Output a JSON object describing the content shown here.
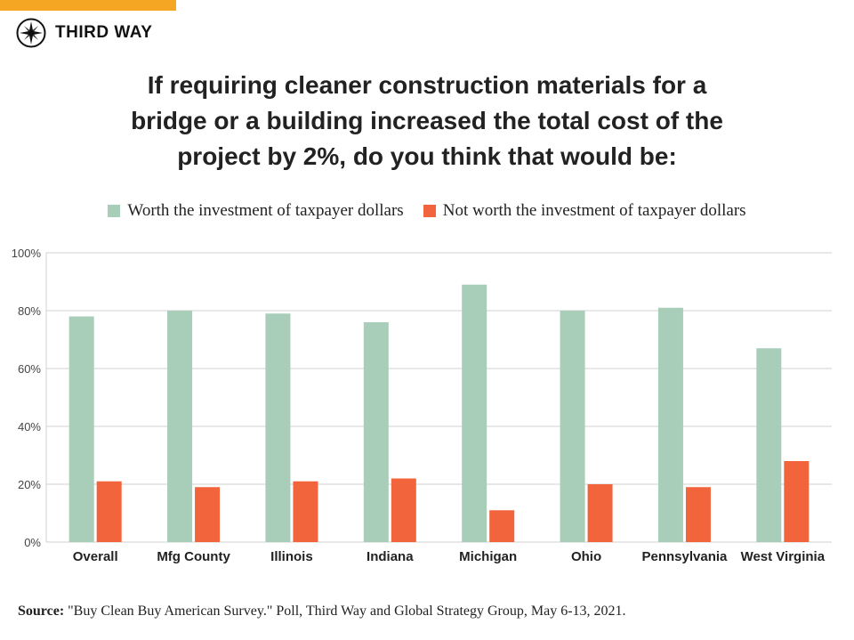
{
  "brand": {
    "name": "THIRD WAY",
    "accent_color": "#f5a623"
  },
  "title_lines": [
    "If requiring cleaner construction materials for a",
    "bridge or a building increased the total cost of the",
    "project by 2%, do you think that would be:"
  ],
  "source": {
    "label": "Source:",
    "text": "\"Buy Clean Buy American Survey.\" Poll, Third Way and Global Strategy Group, May 6-13, 2021."
  },
  "chart_data": {
    "type": "bar",
    "title": "If requiring cleaner construction materials for a bridge or a building increased the total cost of the project by 2%, do you think that would be:",
    "categories": [
      "Overall",
      "Mfg County",
      "Illinois",
      "Indiana",
      "Michigan",
      "Ohio",
      "Pennsylvania",
      "West Virginia"
    ],
    "series": [
      {
        "name": "Worth the investment of taxpayer dollars",
        "color": "#a8cdb9",
        "values": [
          78,
          80,
          79,
          76,
          89,
          80,
          81,
          67
        ]
      },
      {
        "name": "Not worth the investment of taxpayer dollars",
        "color": "#f2653c",
        "values": [
          21,
          19,
          21,
          22,
          11,
          20,
          19,
          28
        ]
      }
    ],
    "ylim": [
      0,
      100
    ],
    "yticks": [
      0,
      20,
      40,
      60,
      80,
      100
    ],
    "ytick_labels": [
      "0%",
      "20%",
      "40%",
      "60%",
      "80%",
      "100%"
    ],
    "grid": true,
    "legend_position": "top-center",
    "xlabel": "",
    "ylabel": ""
  }
}
